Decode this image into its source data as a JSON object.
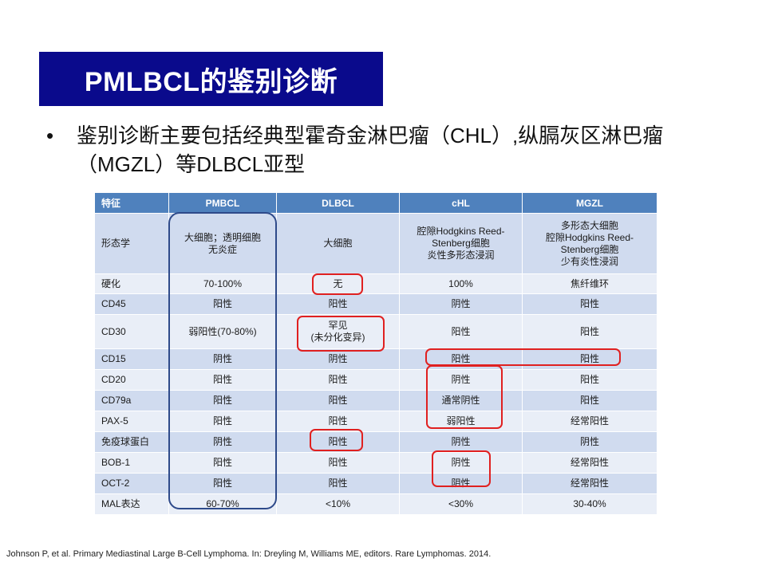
{
  "title": "PMLBCL的鉴别诊断",
  "bullet": {
    "marker": "•",
    "text": "鉴别诊断主要包括经典型霍奇金淋巴瘤（CHL）,纵膈灰区淋巴瘤（MGZL）等DLBCL亚型"
  },
  "table": {
    "headers": [
      "特征",
      "PMBCL",
      "DLBCL",
      "cHL",
      "MGZL"
    ],
    "rows": [
      [
        "形态学",
        "大细胞；透明细胞\n无炎症",
        "大细胞",
        "腔隙Hodgkins Reed-\nStenberg细胞\n炎性多形态浸润",
        "多形态大细胞\n腔隙Hodgkins Reed-\nStenberg细胞\n少有炎性浸润"
      ],
      [
        "硬化",
        "70-100%",
        "无",
        "100%",
        "焦纤维环"
      ],
      [
        "CD45",
        "阳性",
        "阳性",
        "阴性",
        "阳性"
      ],
      [
        "CD30",
        "弱阳性(70-80%)",
        "罕见\n(未分化变异)",
        "阳性",
        "阳性"
      ],
      [
        "CD15",
        "阴性",
        "阴性",
        "阳性",
        "阳性"
      ],
      [
        "CD20",
        "阳性",
        "阳性",
        "阴性",
        "阳性"
      ],
      [
        "CD79a",
        "阳性",
        "阳性",
        "通常阴性",
        "阳性"
      ],
      [
        "PAX-5",
        "阳性",
        "阳性",
        "弱阳性",
        "经常阳性"
      ],
      [
        "免疫球蛋白",
        "阴性",
        "阳性",
        "阴性",
        "阴性"
      ],
      [
        "BOB-1",
        "阳性",
        "阳性",
        "阴性",
        "经常阳性"
      ],
      [
        "OCT-2",
        "阳性",
        "阳性",
        "阴性",
        "经常阳性"
      ],
      [
        "MAL表达",
        "60-70%",
        "<10%",
        "<30%",
        "30-40%"
      ]
    ]
  },
  "citation": "Johnson P, et al. Primary Mediastinal Large B-Cell Lymphoma. In: Dreyling M, Williams ME, editors. Rare Lymphomas. 2014.",
  "colors": {
    "title_bg": "#0a0a8c",
    "header_bg": "#4f81bd",
    "row_dark": "#d0dbef",
    "row_light": "#e9eef7",
    "highlight_blue": "#2e4a8a",
    "highlight_red": "#e02020"
  }
}
